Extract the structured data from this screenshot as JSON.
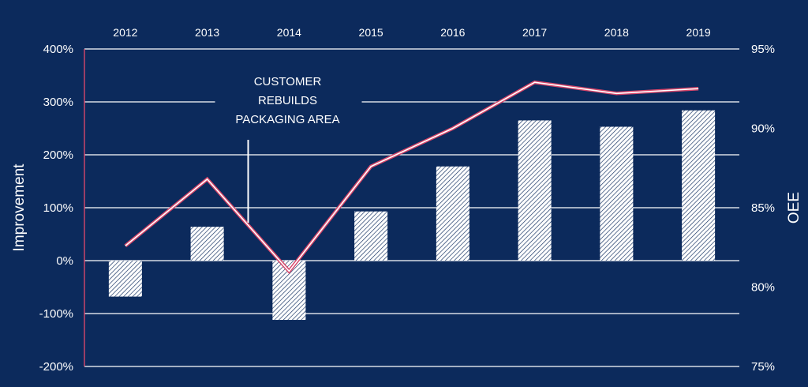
{
  "colors": {
    "background": "#0c2a5c",
    "bar_fill": "#ffffff",
    "bar_hatch": "#0c2a5c",
    "line_outer": "#d6476b",
    "line_inner": "#ffffff",
    "grid": "#ffffff",
    "left_axis": "#d6476b"
  },
  "chart_data": {
    "type": "bar",
    "categories": [
      "2012",
      "2013",
      "2014",
      "2015",
      "2016",
      "2017",
      "2018",
      "2019"
    ],
    "series": [
      {
        "type": "bar",
        "axis": "left",
        "values": [
          -68,
          64,
          -112,
          93,
          178,
          265,
          253,
          284
        ]
      },
      {
        "type": "line",
        "axis": "right",
        "values": [
          82.6,
          86.8,
          81.0,
          87.6,
          90.0,
          92.9,
          92.2,
          92.5
        ]
      }
    ],
    "ylabel": "Improvement",
    "ylabel_right": "OEE",
    "ylim": [
      -200,
      400
    ],
    "ylim_right": [
      75,
      95
    ],
    "yticks": [
      "400%",
      "300%",
      "200%",
      "100%",
      "0%",
      "-100%",
      "-200%"
    ],
    "yticks_right": [
      "95%",
      "90%",
      "85%",
      "80%",
      "75%"
    ],
    "grid": true,
    "annotation": {
      "lines": [
        "CUSTOMER",
        "REBUILDS",
        "PACKAGING AREA"
      ],
      "position_between": [
        "2013",
        "2014"
      ]
    }
  }
}
